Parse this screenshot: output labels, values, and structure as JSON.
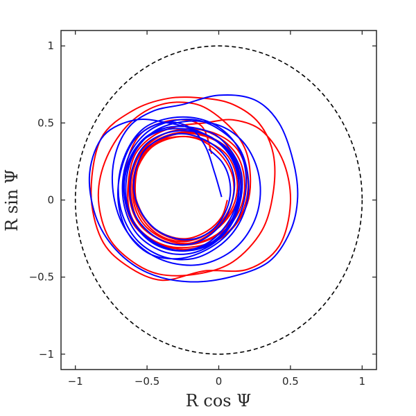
{
  "chart_data": {
    "type": "line",
    "title": "",
    "xlabel": "R cos Ψ",
    "ylabel": "R sin Ψ",
    "xlim": [
      -1.1,
      1.1
    ],
    "ylim": [
      -1.1,
      1.1
    ],
    "xticks": [
      -1,
      -0.5,
      0,
      0.5,
      1
    ],
    "yticks": [
      -1,
      -0.5,
      0,
      0.5,
      1
    ],
    "xtick_labels": [
      "−1",
      "−0.5",
      "0",
      "0.5",
      "1"
    ],
    "ytick_labels": [
      "−1",
      "−0.5",
      "0",
      "0.5",
      "1"
    ],
    "grid": false,
    "legend": "none",
    "reference_circle": {
      "center": [
        0,
        0
      ],
      "radius": 1,
      "style": "dashed",
      "color": "#000000"
    },
    "series": [
      {
        "color": "#ff0000",
        "points": [
          [
            -0.05,
            0.3
          ],
          [
            -0.12,
            0.48
          ],
          [
            -0.3,
            0.52
          ],
          [
            -0.52,
            0.45
          ],
          [
            -0.63,
            0.28
          ],
          [
            -0.66,
            0.05
          ],
          [
            -0.6,
            -0.15
          ],
          [
            -0.45,
            -0.27
          ],
          [
            -0.25,
            -0.32
          ],
          [
            -0.05,
            -0.28
          ],
          [
            0.1,
            -0.18
          ],
          [
            0.2,
            -0.02
          ],
          [
            0.22,
            0.16
          ],
          [
            0.18,
            0.34
          ],
          [
            0.05,
            0.5
          ],
          [
            -0.15,
            0.62
          ],
          [
            -0.4,
            0.62
          ],
          [
            -0.62,
            0.5
          ],
          [
            -0.78,
            0.28
          ],
          [
            -0.84,
            0.03
          ],
          [
            -0.78,
            -0.22
          ],
          [
            -0.63,
            -0.38
          ],
          [
            -0.42,
            -0.48
          ],
          [
            -0.15,
            -0.48
          ],
          [
            0.1,
            -0.4
          ],
          [
            0.3,
            -0.2
          ],
          [
            0.38,
            0.05
          ],
          [
            0.38,
            0.3
          ],
          [
            0.28,
            0.5
          ],
          [
            0.1,
            0.62
          ],
          [
            -0.1,
            0.66
          ],
          [
            -0.35,
            0.66
          ],
          [
            -0.6,
            0.58
          ],
          [
            -0.82,
            0.4
          ],
          [
            -0.89,
            0.05
          ],
          [
            -0.82,
            -0.25
          ],
          [
            -0.65,
            -0.42
          ],
          [
            -0.4,
            -0.52
          ],
          [
            -0.1,
            -0.46
          ],
          [
            0.2,
            -0.45
          ],
          [
            0.42,
            -0.3
          ],
          [
            0.5,
            -0.02
          ],
          [
            0.45,
            0.25
          ],
          [
            0.3,
            0.45
          ],
          [
            0.1,
            0.52
          ],
          [
            -0.1,
            0.5
          ],
          [
            -0.28,
            0.48
          ],
          [
            -0.45,
            0.42
          ],
          [
            -0.58,
            0.3
          ],
          [
            -0.63,
            0.12
          ],
          [
            -0.62,
            -0.08
          ],
          [
            -0.52,
            -0.22
          ],
          [
            -0.35,
            -0.3
          ],
          [
            -0.15,
            -0.3
          ],
          [
            0.02,
            -0.24
          ],
          [
            0.14,
            -0.12
          ],
          [
            0.2,
            0.04
          ],
          [
            0.19,
            0.2
          ],
          [
            0.12,
            0.34
          ],
          [
            -0.02,
            0.43
          ],
          [
            -0.2,
            0.46
          ],
          [
            -0.38,
            0.43
          ],
          [
            -0.53,
            0.33
          ],
          [
            -0.61,
            0.18
          ],
          [
            -0.62,
            0.0
          ],
          [
            -0.55,
            -0.16
          ],
          [
            -0.4,
            -0.26
          ],
          [
            -0.22,
            -0.29
          ],
          [
            -0.05,
            -0.25
          ],
          [
            0.08,
            -0.16
          ],
          [
            0.16,
            -0.03
          ],
          [
            0.18,
            0.12
          ],
          [
            0.14,
            0.27
          ],
          [
            0.04,
            0.38
          ],
          [
            -0.1,
            0.45
          ],
          [
            -0.25,
            0.46
          ],
          [
            -0.4,
            0.42
          ],
          [
            -0.53,
            0.32
          ],
          [
            -0.6,
            0.18
          ],
          [
            -0.61,
            0.02
          ],
          [
            -0.56,
            -0.14
          ],
          [
            -0.44,
            -0.24
          ],
          [
            -0.28,
            -0.29
          ],
          [
            -0.12,
            -0.27
          ],
          [
            0.02,
            -0.2
          ],
          [
            0.12,
            -0.08
          ],
          [
            0.16,
            0.06
          ],
          [
            0.14,
            0.2
          ],
          [
            0.08,
            0.32
          ],
          [
            -0.04,
            0.4
          ],
          [
            -0.18,
            0.44
          ],
          [
            -0.32,
            0.43
          ],
          [
            -0.46,
            0.37
          ],
          [
            -0.56,
            0.25
          ],
          [
            -0.6,
            0.1
          ],
          [
            -0.58,
            -0.06
          ],
          [
            -0.5,
            -0.18
          ],
          [
            -0.36,
            -0.26
          ],
          [
            -0.2,
            -0.28
          ],
          [
            -0.06,
            -0.22
          ],
          [
            0.06,
            -0.12
          ],
          [
            0.13,
            0.0
          ],
          [
            0.14,
            0.14
          ],
          [
            0.1,
            0.26
          ],
          [
            0.02,
            0.36
          ],
          [
            -0.12,
            0.42
          ],
          [
            -0.28,
            0.43
          ],
          [
            -0.42,
            0.38
          ],
          [
            -0.53,
            0.28
          ],
          [
            -0.59,
            0.14
          ],
          [
            -0.58,
            -0.02
          ],
          [
            -0.51,
            -0.15
          ],
          [
            -0.39,
            -0.24
          ],
          [
            -0.24,
            -0.27
          ],
          [
            -0.1,
            -0.23
          ],
          [
            0.02,
            -0.15
          ],
          [
            0.1,
            -0.04
          ],
          [
            0.13,
            0.08
          ],
          [
            0.11,
            0.2
          ],
          [
            0.05,
            0.3
          ],
          [
            -0.06,
            0.37
          ],
          [
            -0.2,
            0.41
          ],
          [
            -0.34,
            0.4
          ],
          [
            -0.47,
            0.34
          ],
          [
            -0.56,
            0.22
          ],
          [
            -0.59,
            0.08
          ],
          [
            -0.55,
            -0.06
          ],
          [
            -0.46,
            -0.18
          ],
          [
            -0.32,
            -0.25
          ],
          [
            -0.18,
            -0.26
          ],
          [
            -0.05,
            -0.2
          ],
          [
            0.05,
            -0.1
          ],
          [
            0.1,
            0.02
          ],
          [
            0.1,
            0.14
          ],
          [
            0.05,
            0.25
          ],
          [
            -0.04,
            0.34
          ],
          [
            -0.16,
            0.4
          ],
          [
            -0.3,
            0.41
          ],
          [
            -0.44,
            0.37
          ],
          [
            -0.54,
            0.27
          ],
          [
            -0.58,
            0.13
          ],
          [
            -0.57,
            -0.02
          ],
          [
            -0.49,
            -0.15
          ],
          [
            -0.36,
            -0.23
          ],
          [
            -0.22,
            -0.25
          ],
          [
            -0.08,
            -0.2
          ],
          [
            0.02,
            -0.11
          ],
          [
            0.06,
            0.0
          ]
        ]
      },
      {
        "color": "#0000ff",
        "points": [
          [
            0.02,
            0.02
          ],
          [
            -0.03,
            0.18
          ],
          [
            -0.1,
            0.36
          ],
          [
            -0.22,
            0.48
          ],
          [
            -0.4,
            0.5
          ],
          [
            -0.58,
            0.4
          ],
          [
            -0.68,
            0.2
          ],
          [
            -0.7,
            -0.02
          ],
          [
            -0.63,
            -0.22
          ],
          [
            -0.48,
            -0.35
          ],
          [
            -0.28,
            -0.38
          ],
          [
            -0.08,
            -0.32
          ],
          [
            0.08,
            -0.2
          ],
          [
            0.17,
            -0.03
          ],
          [
            0.19,
            0.16
          ],
          [
            0.14,
            0.33
          ],
          [
            0.02,
            0.46
          ],
          [
            -0.15,
            0.53
          ],
          [
            -0.35,
            0.53
          ],
          [
            -0.53,
            0.46
          ],
          [
            -0.65,
            0.3
          ],
          [
            -0.7,
            0.1
          ],
          [
            -0.67,
            -0.1
          ],
          [
            -0.56,
            -0.27
          ],
          [
            -0.38,
            -0.37
          ],
          [
            -0.18,
            -0.38
          ],
          [
            0.0,
            -0.3
          ],
          [
            0.13,
            -0.17
          ],
          [
            0.2,
            0.0
          ],
          [
            0.2,
            0.18
          ],
          [
            0.14,
            0.34
          ],
          [
            0.0,
            0.46
          ],
          [
            -0.16,
            0.52
          ],
          [
            -0.34,
            0.51
          ],
          [
            -0.5,
            0.44
          ],
          [
            -0.62,
            0.3
          ],
          [
            -0.67,
            0.12
          ],
          [
            -0.65,
            -0.07
          ],
          [
            -0.56,
            -0.23
          ],
          [
            -0.4,
            -0.33
          ],
          [
            -0.22,
            -0.35
          ],
          [
            -0.05,
            -0.29
          ],
          [
            0.08,
            -0.17
          ],
          [
            0.15,
            -0.01
          ],
          [
            0.16,
            0.16
          ],
          [
            0.1,
            0.3
          ],
          [
            -0.02,
            0.42
          ],
          [
            -0.18,
            0.47
          ],
          [
            -0.36,
            0.47
          ],
          [
            -0.52,
            0.4
          ],
          [
            -0.62,
            0.26
          ],
          [
            -0.66,
            0.08
          ],
          [
            -0.62,
            -0.1
          ],
          [
            -0.5,
            -0.24
          ],
          [
            -0.33,
            -0.32
          ],
          [
            -0.15,
            -0.32
          ],
          [
            0.0,
            -0.25
          ],
          [
            0.1,
            -0.12
          ],
          [
            0.15,
            0.03
          ],
          [
            0.14,
            0.19
          ],
          [
            0.07,
            0.32
          ],
          [
            -0.06,
            0.41
          ],
          [
            -0.22,
            0.46
          ],
          [
            -0.4,
            0.45
          ],
          [
            -0.55,
            0.37
          ],
          [
            -0.64,
            0.22
          ],
          [
            -0.66,
            0.04
          ],
          [
            -0.6,
            -0.14
          ],
          [
            -0.46,
            -0.27
          ],
          [
            -0.28,
            -0.33
          ],
          [
            -0.1,
            -0.3
          ],
          [
            0.04,
            -0.2
          ],
          [
            0.12,
            -0.06
          ],
          [
            0.14,
            0.1
          ],
          [
            0.1,
            0.25
          ],
          [
            0.0,
            0.37
          ],
          [
            -0.15,
            0.45
          ],
          [
            -0.35,
            0.5
          ],
          [
            -0.58,
            0.52
          ],
          [
            -0.8,
            0.42
          ],
          [
            -0.9,
            0.18
          ],
          [
            -0.86,
            -0.1
          ],
          [
            -0.72,
            -0.32
          ],
          [
            -0.5,
            -0.47
          ],
          [
            -0.22,
            -0.53
          ],
          [
            0.08,
            -0.5
          ],
          [
            0.35,
            -0.4
          ],
          [
            0.5,
            -0.2
          ],
          [
            0.55,
            0.02
          ],
          [
            0.52,
            0.25
          ],
          [
            0.42,
            0.5
          ],
          [
            0.25,
            0.65
          ],
          [
            0.0,
            0.68
          ],
          [
            -0.25,
            0.62
          ],
          [
            -0.45,
            0.58
          ],
          [
            -0.62,
            0.48
          ],
          [
            -0.72,
            0.3
          ],
          [
            -0.74,
            0.08
          ],
          [
            -0.68,
            -0.14
          ],
          [
            -0.55,
            -0.3
          ],
          [
            -0.36,
            -0.4
          ],
          [
            -0.14,
            -0.42
          ],
          [
            0.06,
            -0.35
          ],
          [
            0.2,
            -0.22
          ],
          [
            0.28,
            -0.04
          ],
          [
            0.28,
            0.16
          ],
          [
            0.2,
            0.34
          ],
          [
            0.06,
            0.46
          ],
          [
            -0.12,
            0.51
          ],
          [
            -0.3,
            0.5
          ],
          [
            -0.46,
            0.44
          ],
          [
            -0.58,
            0.32
          ],
          [
            -0.64,
            0.16
          ],
          [
            -0.64,
            -0.02
          ],
          [
            -0.57,
            -0.18
          ],
          [
            -0.44,
            -0.29
          ],
          [
            -0.27,
            -0.33
          ],
          [
            -0.1,
            -0.29
          ],
          [
            0.03,
            -0.19
          ],
          [
            0.11,
            -0.06
          ],
          [
            0.14,
            0.09
          ],
          [
            0.12,
            0.23
          ],
          [
            0.04,
            0.34
          ],
          [
            -0.08,
            0.42
          ],
          [
            -0.23,
            0.45
          ],
          [
            -0.38,
            0.43
          ],
          [
            -0.51,
            0.36
          ],
          [
            -0.59,
            0.24
          ],
          [
            -0.62,
            0.09
          ],
          [
            -0.6,
            -0.06
          ],
          [
            -0.52,
            -0.18
          ],
          [
            -0.38,
            -0.27
          ],
          [
            -0.22,
            -0.29
          ],
          [
            -0.08,
            -0.24
          ],
          [
            0.03,
            -0.14
          ],
          [
            0.09,
            -0.02
          ],
          [
            0.11,
            0.11
          ],
          [
            0.08,
            0.23
          ],
          [
            0.0,
            0.33
          ],
          [
            -0.12,
            0.4
          ],
          [
            -0.26,
            0.43
          ],
          [
            -0.4,
            0.4
          ],
          [
            -0.52,
            0.32
          ],
          [
            -0.58,
            0.19
          ],
          [
            -0.59,
            0.05
          ],
          [
            -0.54,
            -0.08
          ],
          [
            -0.44,
            -0.19
          ],
          [
            -0.3,
            -0.25
          ],
          [
            -0.16,
            -0.25
          ],
          [
            -0.04,
            -0.19
          ],
          [
            0.04,
            -0.09
          ],
          [
            0.08,
            0.03
          ],
          [
            0.07,
            0.15
          ],
          [
            0.02,
            0.25
          ],
          [
            -0.07,
            0.33
          ]
        ]
      }
    ]
  }
}
